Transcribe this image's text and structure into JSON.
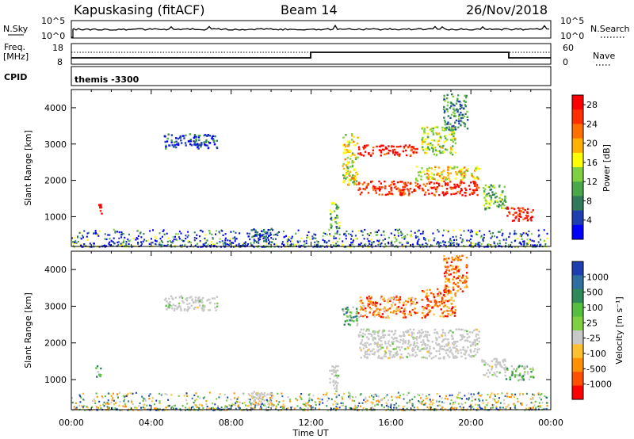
{
  "header": {
    "title_left": "Kapuskasing (fitACF)",
    "title_mid": "Beam 14",
    "title_right": "26/Nov/2018"
  },
  "status_panels": {
    "nsky": {
      "label": "N.Sky",
      "left_ticks": [
        "10^5",
        "10^0"
      ],
      "right_label": "N.Search",
      "right_ticks": [
        "10^5",
        "10^0"
      ]
    },
    "freq": {
      "label_line1": "Freq.",
      "label_line2": "[MHz]",
      "left_ticks": [
        "18",
        "8"
      ],
      "right_label": "Nave",
      "right_ticks": [
        "60",
        "0"
      ]
    },
    "cpid": {
      "label": "CPID",
      "text": "themis -3300"
    }
  },
  "colors": {
    "power": [
      "#0000ff",
      "#1f3fb0",
      "#2f7a5a",
      "#4aa84a",
      "#7fd040",
      "#ffff00",
      "#ffb000",
      "#ff7000",
      "#ff3000",
      "#ff0000"
    ],
    "velocity": [
      "#1f3fb0",
      "#2f6fa0",
      "#2f8a5a",
      "#55c040",
      "#7fd040",
      "#c8c8c8",
      "#ffc030",
      "#ff9000",
      "#ff5000",
      "#ff0000"
    ],
    "ground_scatter": "#c8c8c8"
  },
  "chart_data": [
    {
      "type": "heatmap",
      "panel": "power",
      "ylabel": "Slant Range [km]",
      "ylim": [
        180,
        4500
      ],
      "yticks": [
        "1000",
        "2000",
        "3000",
        "4000"
      ],
      "xlim_hours": [
        0,
        24
      ],
      "xticks": [
        "00:00",
        "04:00",
        "08:00",
        "12:00",
        "16:00",
        "20:00",
        "00:00"
      ],
      "colorbar": {
        "label": "Power [dB]",
        "range": [
          0,
          30
        ],
        "ticks": [
          "4",
          "8",
          "12",
          "16",
          "20",
          "24",
          "28"
        ]
      },
      "regions": [
        {
          "t": [
            1.2,
            1.5
          ],
          "r": [
            1100,
            1400
          ],
          "level": 0.95
        },
        {
          "t": [
            4.6,
            7.3
          ],
          "r": [
            2900,
            3300
          ],
          "level": 0.15
        },
        {
          "t": [
            8.8,
            10.0
          ],
          "r": [
            300,
            700
          ],
          "level": 0.2
        },
        {
          "t": [
            12.9,
            13.4
          ],
          "r": [
            700,
            1400
          ],
          "level": 0.35
        },
        {
          "t": [
            13.5,
            14.3
          ],
          "r": [
            1900,
            3300
          ],
          "level": 0.55
        },
        {
          "t": [
            14.3,
            17.3
          ],
          "r": [
            2700,
            3000
          ],
          "level": 0.95
        },
        {
          "t": [
            14.3,
            20.4
          ],
          "r": [
            1600,
            2000
          ],
          "level": 0.9
        },
        {
          "t": [
            17.2,
            20.4
          ],
          "r": [
            2000,
            2400
          ],
          "level": 0.6
        },
        {
          "t": [
            17.5,
            19.2
          ],
          "r": [
            2700,
            3500
          ],
          "level": 0.5
        },
        {
          "t": [
            18.6,
            19.8
          ],
          "r": [
            3400,
            4400
          ],
          "level": 0.3
        },
        {
          "t": [
            20.5,
            21.7
          ],
          "r": [
            1200,
            1900
          ],
          "level": 0.4
        },
        {
          "t": [
            21.7,
            23.1
          ],
          "r": [
            900,
            1300
          ],
          "level": 0.92
        }
      ]
    },
    {
      "type": "heatmap",
      "panel": "velocity",
      "ylabel": "Slant Range [km]",
      "ylim": [
        180,
        4500
      ],
      "yticks": [
        "1000",
        "2000",
        "3000",
        "4000"
      ],
      "xlim_hours": [
        0,
        24
      ],
      "xticks": [
        "00:00",
        "04:00",
        "08:00",
        "12:00",
        "16:00",
        "20:00",
        "00:00"
      ],
      "xlabel": "Time UT",
      "colorbar": {
        "label": "Velocity [m s⁻¹]",
        "range": [
          -1200,
          1200
        ],
        "ticks": [
          "1000",
          "500",
          "100",
          "25",
          "-25",
          "-100",
          "-500",
          "-1000"
        ]
      },
      "regions": [
        {
          "t": [
            1.2,
            1.5
          ],
          "r": [
            1100,
            1400
          ],
          "level": 0.35,
          "gs": false
        },
        {
          "t": [
            4.6,
            7.3
          ],
          "r": [
            2900,
            3300
          ],
          "level": 0.5,
          "gs": true
        },
        {
          "t": [
            8.8,
            10.0
          ],
          "r": [
            300,
            700
          ],
          "level": 0.6,
          "gs": true
        },
        {
          "t": [
            12.9,
            13.4
          ],
          "r": [
            700,
            1400
          ],
          "level": 0.5,
          "gs": true
        },
        {
          "t": [
            13.5,
            14.3
          ],
          "r": [
            2500,
            3000
          ],
          "level": 0.35,
          "gs": false
        },
        {
          "t": [
            14.3,
            17.3
          ],
          "r": [
            2700,
            3300
          ],
          "level": 0.75,
          "gs": false
        },
        {
          "t": [
            14.3,
            20.4
          ],
          "r": [
            1600,
            2400
          ],
          "level": 0.5,
          "gs": true
        },
        {
          "t": [
            17.5,
            19.2
          ],
          "r": [
            2700,
            3500
          ],
          "level": 0.8,
          "gs": false
        },
        {
          "t": [
            18.6,
            19.8
          ],
          "r": [
            3400,
            4400
          ],
          "level": 0.8,
          "gs": false
        },
        {
          "t": [
            20.5,
            21.7
          ],
          "r": [
            1100,
            1600
          ],
          "level": 0.5,
          "gs": true
        },
        {
          "t": [
            21.7,
            23.1
          ],
          "r": [
            1000,
            1400
          ],
          "level": 0.4,
          "gs": false
        }
      ]
    }
  ]
}
